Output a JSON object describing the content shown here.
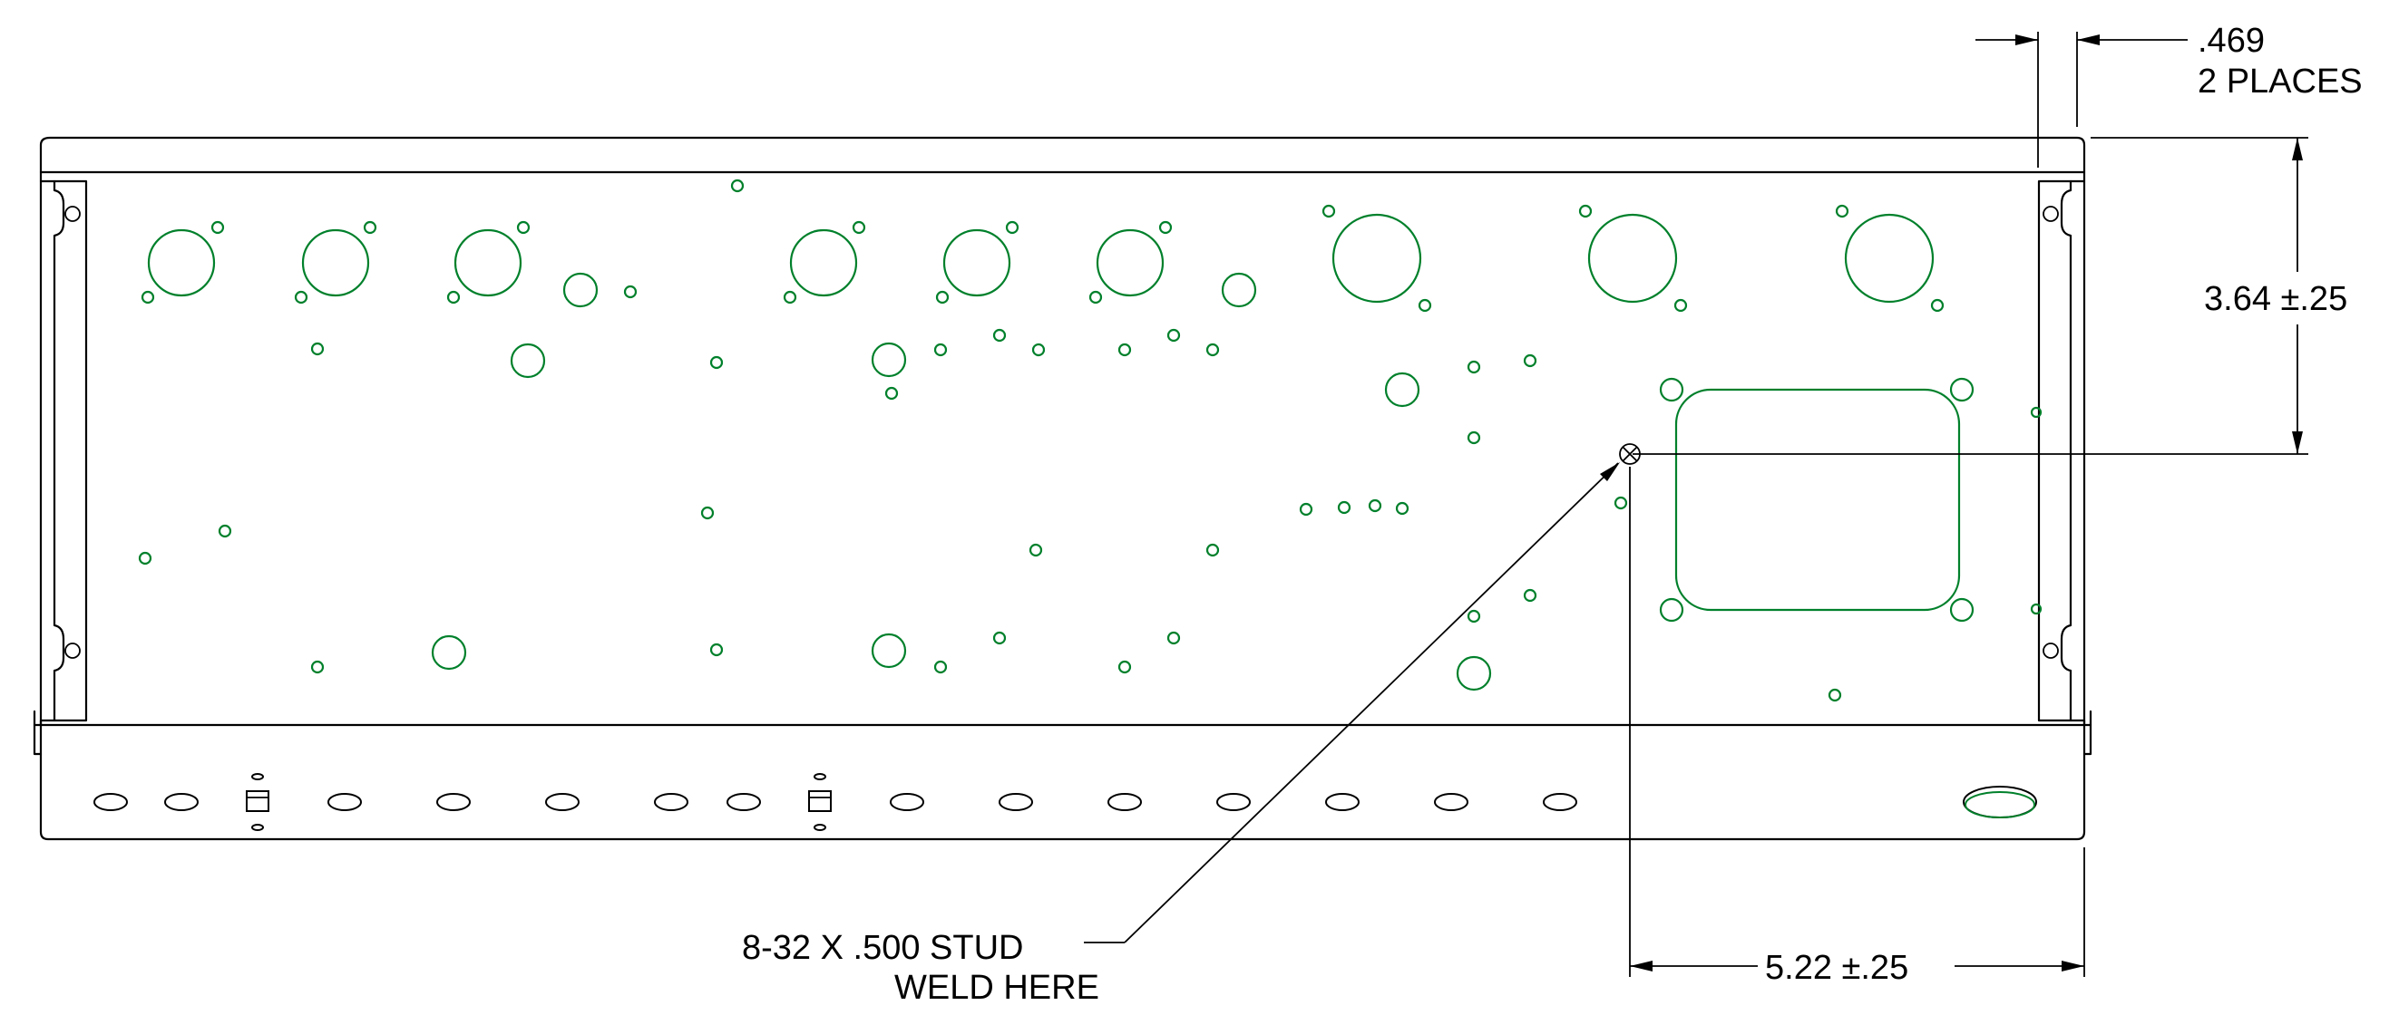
{
  "annotations": {
    "thickness_value": ".469",
    "thickness_note": "2 PLACES",
    "vertical_dimension": "3.64 ±.25",
    "horizontal_dimension": "5.22 ±.25",
    "stud_callout_line1": "8-32 X .500 STUD",
    "stud_callout_line2": "WELD HERE"
  },
  "colors": {
    "outline": "#000000",
    "holes": "#00802b",
    "background": "#ffffff"
  },
  "icons": {
    "weld_stud_marker": "circle-x-icon"
  }
}
